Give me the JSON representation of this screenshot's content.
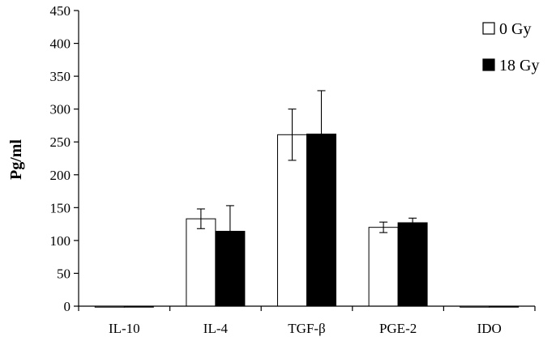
{
  "chart_data": {
    "type": "bar",
    "title": "",
    "xlabel": "",
    "ylabel": "Pg/ml",
    "ylim": [
      0,
      450
    ],
    "yticks": [
      0,
      50,
      100,
      150,
      200,
      250,
      300,
      350,
      400,
      450
    ],
    "grid": false,
    "legend_position": "top-right",
    "categories": [
      "IL-10",
      "IL-4",
      "TGF-β",
      "PGE-2",
      "IDO"
    ],
    "series": [
      {
        "name": "0 Gy",
        "fill": "#ffffff",
        "values": [
          0,
          133,
          261,
          120,
          0
        ],
        "errors": [
          0,
          15,
          39,
          8,
          0
        ]
      },
      {
        "name": "18 Gy",
        "fill": "#000000",
        "values": [
          0,
          114,
          262,
          127,
          0
        ],
        "errors": [
          0,
          39,
          66,
          7,
          0
        ]
      }
    ]
  }
}
